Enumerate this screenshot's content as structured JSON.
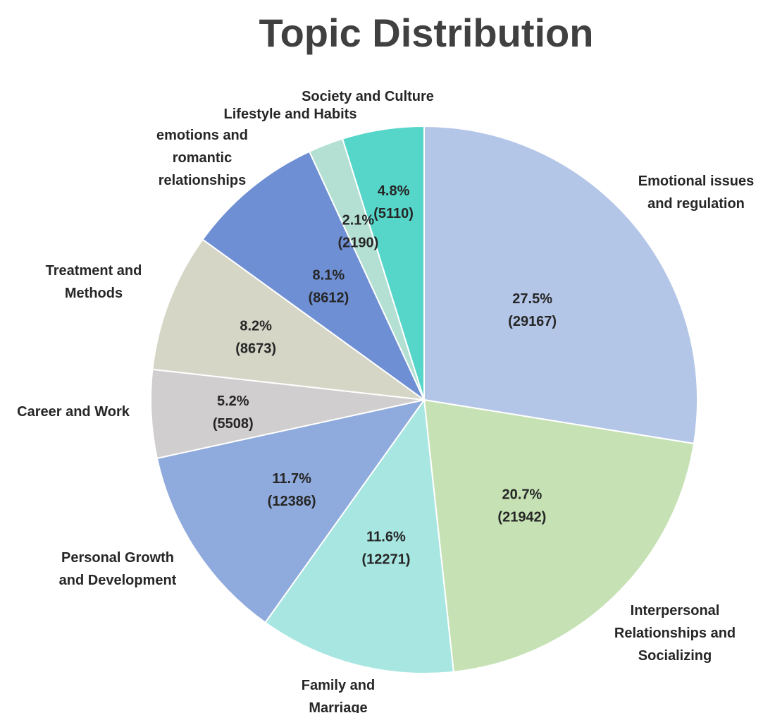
{
  "chart_data": {
    "type": "pie",
    "title": "Topic Distribution",
    "start_angle_deg": 0,
    "direction": "clockwise",
    "legend": "none",
    "slices": [
      {
        "label": "Emotional issues and regulation",
        "value": 29167,
        "percent": "27.5%",
        "color": "#b4c6e7"
      },
      {
        "label": "Interpersonal Relationships and Socializing",
        "value": 21942,
        "percent": "20.7%",
        "color": "#c6e2b5"
      },
      {
        "label": "Family and Marriage",
        "value": 12271,
        "percent": "11.6%",
        "color": "#a8e6e1"
      },
      {
        "label": "Personal Growth and Development",
        "value": 12386,
        "percent": "11.7%",
        "color": "#8faadc"
      },
      {
        "label": "Career and Work",
        "value": 5508,
        "percent": "5.2%",
        "color": "#d0cece"
      },
      {
        "label": "Treatment and Methods",
        "value": 8673,
        "percent": "8.2%",
        "color": "#d5d6c6"
      },
      {
        "label": "emotions and romantic relationships",
        "value": 8612,
        "percent": "8.1%",
        "color": "#6e8fd4"
      },
      {
        "label": "Lifestyle and Habits",
        "value": 2190,
        "percent": "2.1%",
        "color": "#b3e0d2"
      },
      {
        "label": "Society and Culture",
        "value": 5110,
        "percent": "4.8%",
        "color": "#56d5c9"
      }
    ]
  }
}
